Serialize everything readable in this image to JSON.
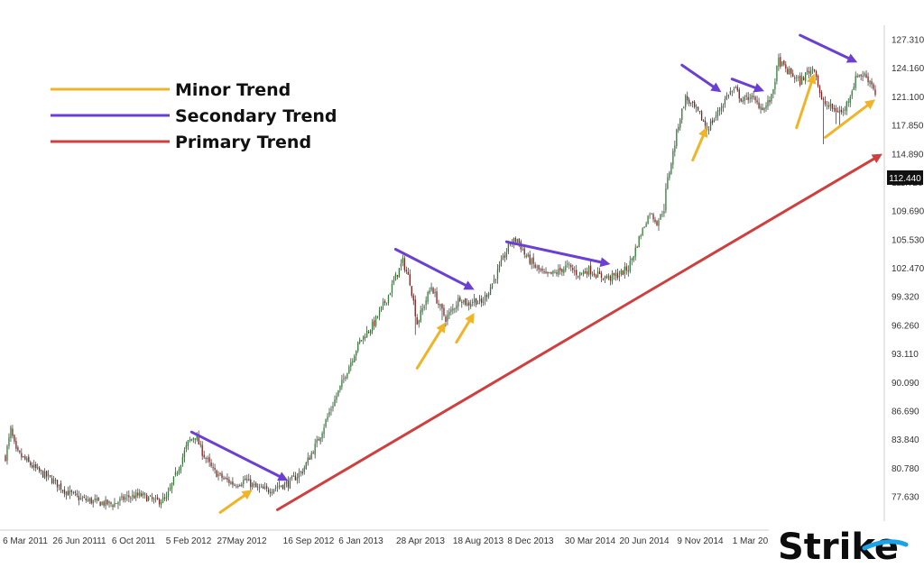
{
  "chart_data": {
    "type": "candlestick",
    "title": "",
    "xlabel": "",
    "ylabel": "",
    "ylim": [
      74.5,
      129.0
    ],
    "x_tick_labels": [
      "6 Mar 2011",
      "26 Jun 20111",
      "6 Oct 2011",
      "5 Feb 2012",
      "27May 2012",
      "16 Sep 2012",
      "6 Jan 2013",
      "28 Apr 2013",
      "18 Aug 2013",
      "8 Dec 2013",
      "30 Mar 2014",
      "20 Jun 2014",
      "9 Nov 2014",
      "1 Mar 2015"
    ],
    "y_tick_labels": [
      "127.310",
      "124.160",
      "121.100",
      "117.850",
      "114.890",
      "111.720",
      "109.690",
      "105.530",
      "102.470",
      "99.320",
      "96.260",
      "93.110",
      "90.090",
      "86.690",
      "83.840",
      "80.780",
      "77.630"
    ],
    "last_price": "112.440",
    "up_color": "#2e7d32",
    "down_color": "#8b1a1a",
    "price_path": [
      {
        "i": 0,
        "p": 82.0
      },
      {
        "i": 3,
        "p": 84.8
      },
      {
        "i": 6,
        "p": 82.5
      },
      {
        "i": 12,
        "p": 81.5
      },
      {
        "i": 18,
        "p": 80.5
      },
      {
        "i": 26,
        "p": 79.5
      },
      {
        "i": 34,
        "p": 78.2
      },
      {
        "i": 42,
        "p": 77.4
      },
      {
        "i": 52,
        "p": 77.0
      },
      {
        "i": 60,
        "p": 76.8
      },
      {
        "i": 68,
        "p": 77.6
      },
      {
        "i": 76,
        "p": 77.8
      },
      {
        "i": 84,
        "p": 77.1
      },
      {
        "i": 90,
        "p": 77.4
      },
      {
        "i": 96,
        "p": 80.5
      },
      {
        "i": 102,
        "p": 83.5
      },
      {
        "i": 106,
        "p": 84.3
      },
      {
        "i": 110,
        "p": 82.5
      },
      {
        "i": 116,
        "p": 80.5
      },
      {
        "i": 122,
        "p": 79.6
      },
      {
        "i": 128,
        "p": 79.0
      },
      {
        "i": 134,
        "p": 79.5
      },
      {
        "i": 140,
        "p": 78.6
      },
      {
        "i": 146,
        "p": 78.3
      },
      {
        "i": 152,
        "p": 78.8
      },
      {
        "i": 158,
        "p": 79.1
      },
      {
        "i": 166,
        "p": 80.5
      },
      {
        "i": 174,
        "p": 83.5
      },
      {
        "i": 182,
        "p": 87.0
      },
      {
        "i": 190,
        "p": 91.0
      },
      {
        "i": 198,
        "p": 94.5
      },
      {
        "i": 206,
        "p": 96.5
      },
      {
        "i": 214,
        "p": 99.5
      },
      {
        "i": 218,
        "p": 101.5
      },
      {
        "i": 222,
        "p": 103.2
      },
      {
        "i": 226,
        "p": 101.0
      },
      {
        "i": 230,
        "p": 96.5
      },
      {
        "i": 234,
        "p": 98.5
      },
      {
        "i": 238,
        "p": 100.5
      },
      {
        "i": 242,
        "p": 98.5
      },
      {
        "i": 246,
        "p": 97.0
      },
      {
        "i": 250,
        "p": 98.0
      },
      {
        "i": 254,
        "p": 99.3
      },
      {
        "i": 258,
        "p": 98.5
      },
      {
        "i": 262,
        "p": 99.0
      },
      {
        "i": 266,
        "p": 98.6
      },
      {
        "i": 270,
        "p": 100.0
      },
      {
        "i": 276,
        "p": 102.5
      },
      {
        "i": 282,
        "p": 105.2
      },
      {
        "i": 286,
        "p": 105.6
      },
      {
        "i": 290,
        "p": 104.0
      },
      {
        "i": 296,
        "p": 102.6
      },
      {
        "i": 302,
        "p": 101.6
      },
      {
        "i": 308,
        "p": 102.0
      },
      {
        "i": 314,
        "p": 102.7
      },
      {
        "i": 320,
        "p": 101.8
      },
      {
        "i": 326,
        "p": 102.3
      },
      {
        "i": 332,
        "p": 101.6
      },
      {
        "i": 338,
        "p": 101.4
      },
      {
        "i": 344,
        "p": 101.9
      },
      {
        "i": 348,
        "p": 102.5
      },
      {
        "i": 352,
        "p": 104.5
      },
      {
        "i": 356,
        "p": 107.0
      },
      {
        "i": 360,
        "p": 109.5
      },
      {
        "i": 364,
        "p": 108.0
      },
      {
        "i": 368,
        "p": 110.0
      },
      {
        "i": 372,
        "p": 114.0
      },
      {
        "i": 376,
        "p": 118.0
      },
      {
        "i": 380,
        "p": 121.0
      },
      {
        "i": 384,
        "p": 120.0
      },
      {
        "i": 388,
        "p": 119.0
      },
      {
        "i": 392,
        "p": 117.5
      },
      {
        "i": 396,
        "p": 118.6
      },
      {
        "i": 400,
        "p": 120.0
      },
      {
        "i": 404,
        "p": 121.5
      },
      {
        "i": 408,
        "p": 121.8
      },
      {
        "i": 412,
        "p": 120.6
      },
      {
        "i": 416,
        "p": 121.2
      },
      {
        "i": 420,
        "p": 120.3
      },
      {
        "i": 424,
        "p": 119.8
      },
      {
        "i": 428,
        "p": 121.0
      },
      {
        "i": 432,
        "p": 125.0
      },
      {
        "i": 436,
        "p": 124.0
      },
      {
        "i": 440,
        "p": 123.4
      },
      {
        "i": 444,
        "p": 122.7
      },
      {
        "i": 448,
        "p": 123.7
      },
      {
        "i": 452,
        "p": 124.3
      },
      {
        "i": 456,
        "p": 120.6
      },
      {
        "i": 460,
        "p": 120.0
      },
      {
        "i": 464,
        "p": 119.6
      },
      {
        "i": 468,
        "p": 119.3
      },
      {
        "i": 472,
        "p": 121.4
      },
      {
        "i": 476,
        "p": 123.5
      },
      {
        "i": 480,
        "p": 123.4
      },
      {
        "i": 484,
        "p": 122.6
      },
      {
        "i": 486,
        "p": 121.5
      }
    ],
    "volatility": 0.55,
    "shocks": [
      {
        "i": 229,
        "low": 95.2
      },
      {
        "i": 231,
        "low": 96.0
      },
      {
        "i": 244,
        "low": 96.8
      },
      {
        "i": 365,
        "low": 106.8
      },
      {
        "i": 393,
        "low": 116.9
      },
      {
        "i": 457,
        "low": 115.9
      },
      {
        "i": 464,
        "low": 118.0
      },
      {
        "i": 466,
        "low": 117.6
      }
    ],
    "annotations": {
      "primary_trend": {
        "from": [
          152,
          76.2
        ],
        "to": [
          490,
          114.9
        ],
        "color": "#d03e3e"
      },
      "secondary_trends": [
        {
          "from": [
            104,
            84.6
          ],
          "to": [
            158,
            79.4
          ]
        },
        {
          "from": [
            218,
            104.5
          ],
          "to": [
            262,
            100.1
          ]
        },
        {
          "from": [
            280,
            105.3
          ],
          "to": [
            338,
            102.9
          ]
        },
        {
          "from": [
            378,
            124.5
          ],
          "to": [
            400,
            121.6
          ]
        },
        {
          "from": [
            406,
            123.0
          ],
          "to": [
            424,
            121.7
          ]
        },
        {
          "from": [
            444,
            127.8
          ],
          "to": [
            476,
            124.8
          ]
        }
      ],
      "minor_trends": [
        {
          "from": [
            120,
            75.9
          ],
          "to": [
            138,
            78.4
          ]
        },
        {
          "from": [
            230,
            91.6
          ],
          "to": [
            246,
            96.6
          ]
        },
        {
          "from": [
            252,
            94.4
          ],
          "to": [
            262,
            97.6
          ]
        },
        {
          "from": [
            384,
            114.2
          ],
          "to": [
            392,
            117.7
          ]
        },
        {
          "from": [
            442,
            117.6
          ],
          "to": [
            452,
            123.6
          ]
        },
        {
          "from": [
            458,
            116.6
          ],
          "to": [
            486,
            120.8
          ]
        }
      ],
      "secondary_color": "#6b3fd6",
      "minor_color": "#f0b429"
    }
  },
  "legend": {
    "items": [
      {
        "label": "Minor Trend",
        "color": "#f0b429"
      },
      {
        "label": "Secondary Trend",
        "color": "#6b3fd6"
      },
      {
        "label": "Primary Trend",
        "color": "#d03e3e"
      }
    ]
  },
  "logo": {
    "text": "Strike",
    "accent_color": "#1aa3e8"
  }
}
